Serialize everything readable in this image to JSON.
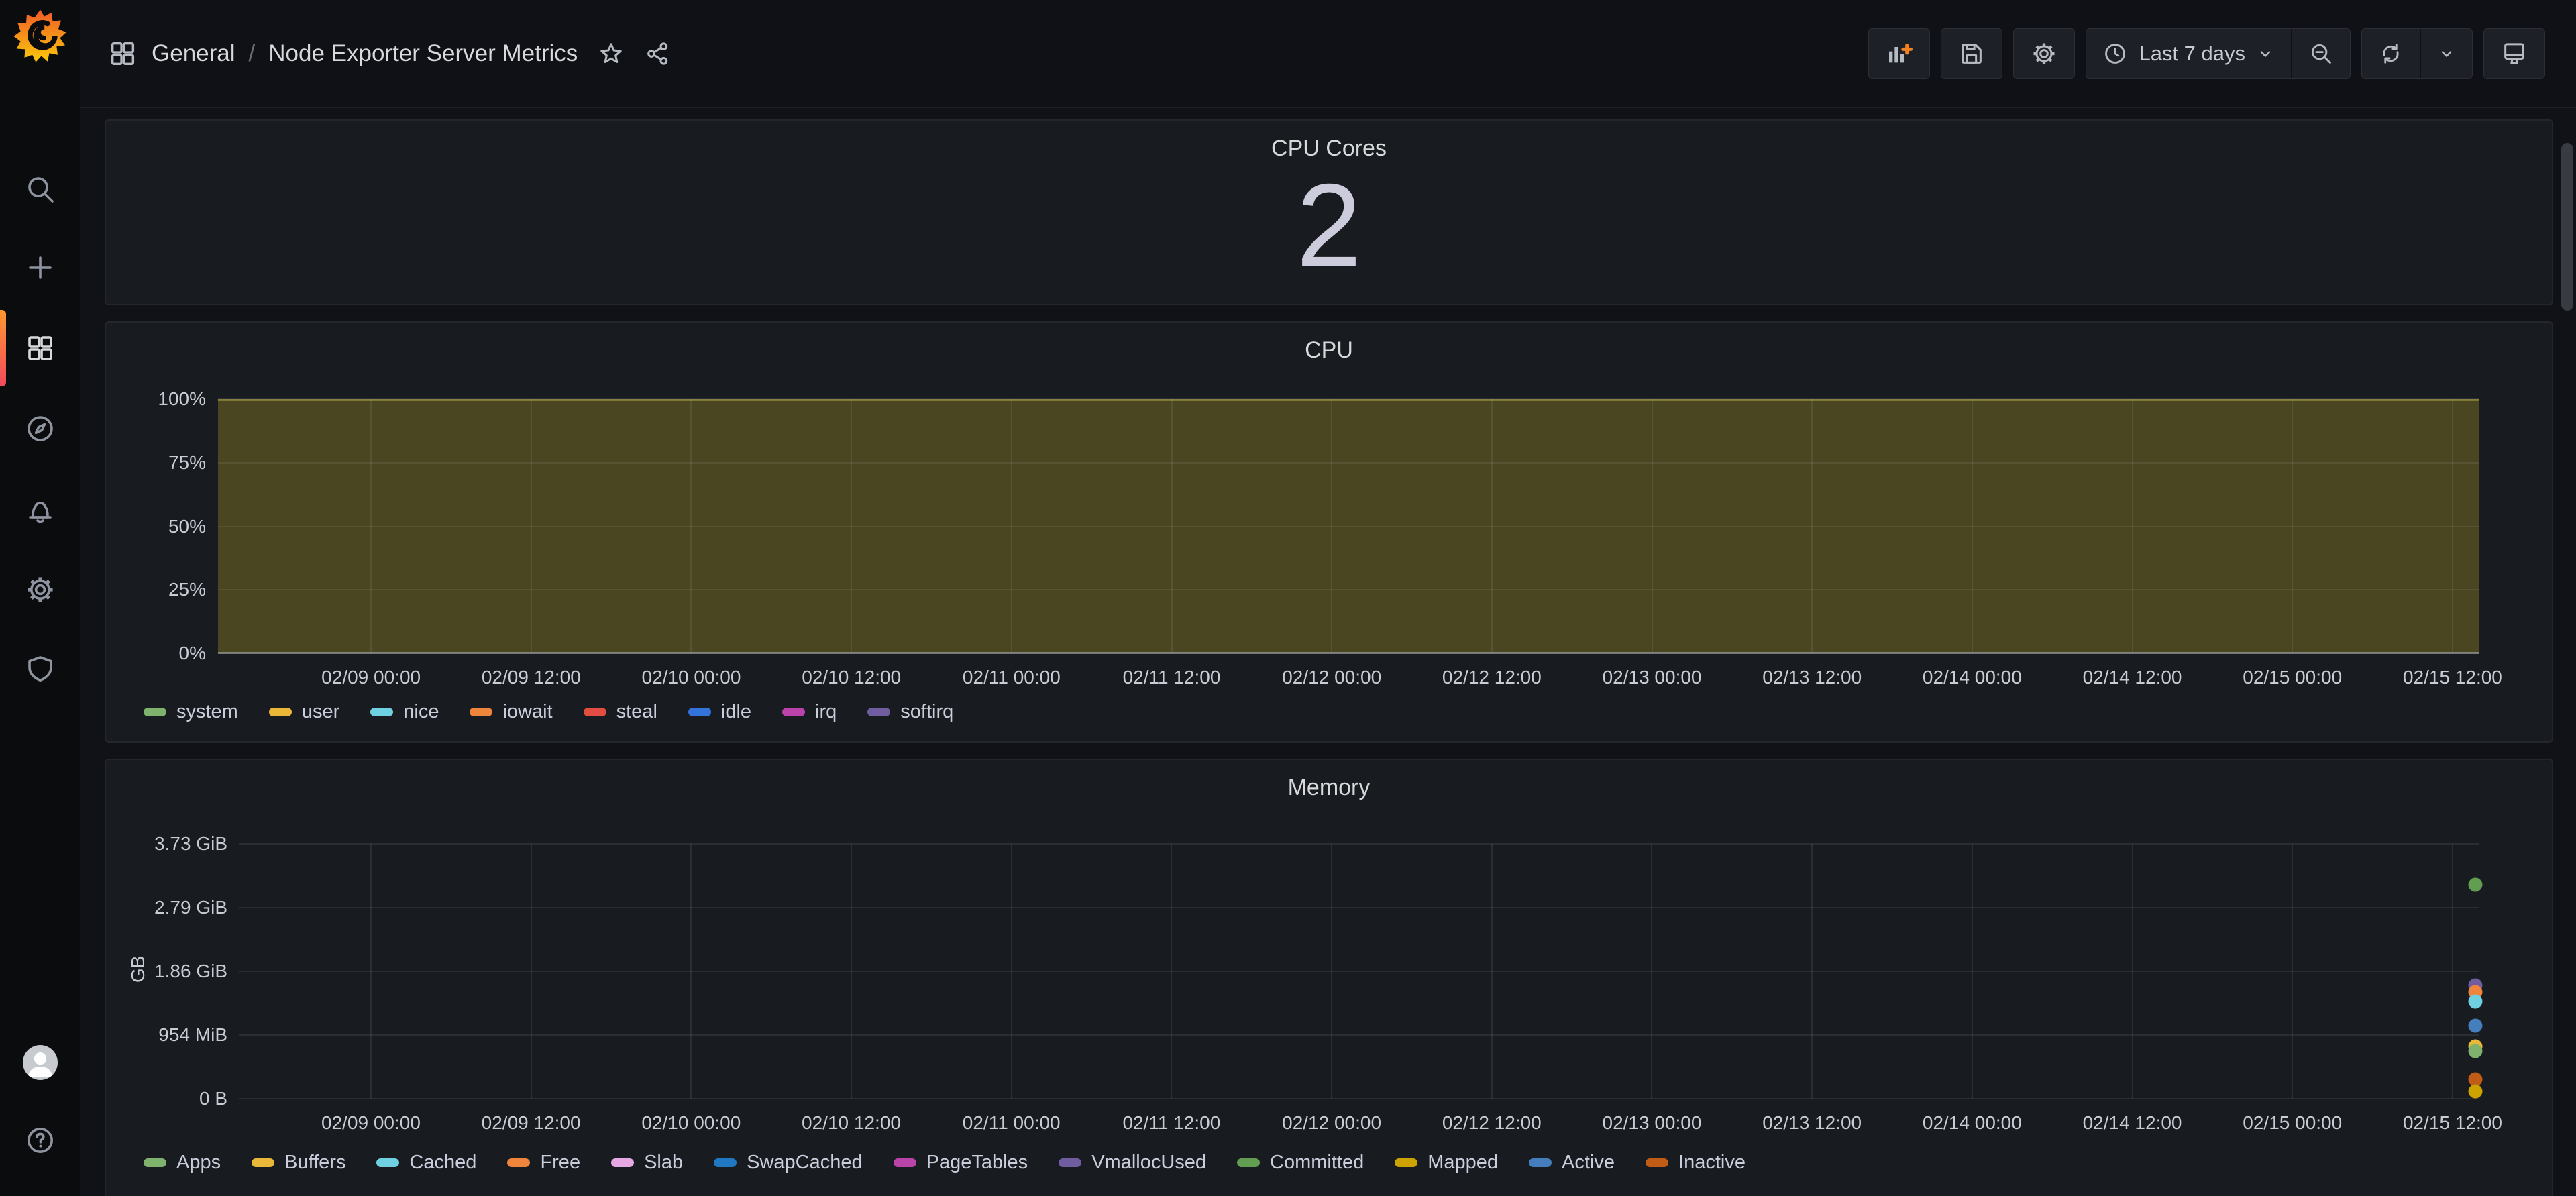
{
  "nav": {
    "folder": "General",
    "separator": "/",
    "title": "Node Exporter Server Metrics"
  },
  "toolbar": {
    "time_range_label": "Last 7 days",
    "buttons": [
      {
        "icon": "add-panel-icon"
      },
      {
        "icon": "save-dashboard-icon"
      },
      {
        "icon": "dashboard-settings-gear-icon"
      },
      {
        "icon": "clock-icon",
        "label": "Last 7 days"
      },
      {
        "icon": "zoom-out-icon"
      },
      {
        "icon": "refresh-icon"
      },
      {
        "icon": "refresh-interval-chevron-icon"
      },
      {
        "icon": "cycle-view-monitor-icon"
      }
    ]
  },
  "sidebar": {
    "items": [
      {
        "icon": "grafana-logo"
      },
      {
        "icon": "search-icon"
      },
      {
        "icon": "plus-icon"
      },
      {
        "icon": "dashboards-grid-icon",
        "active": true
      },
      {
        "icon": "explore-compass-icon"
      },
      {
        "icon": "alerting-bell-icon"
      },
      {
        "icon": "configuration-gear-icon"
      },
      {
        "icon": "admin-shield-icon"
      },
      {
        "icon": "user-avatar"
      },
      {
        "icon": "help-question-icon"
      }
    ]
  },
  "panels": {
    "cpu_cores": {
      "title": "CPU Cores",
      "value": "2"
    }
  },
  "chart_data": [
    {
      "id": "cpu",
      "type": "area",
      "title": "CPU",
      "ylabel": "%",
      "ylim": [
        0,
        100
      ],
      "yticks": [
        "100%",
        "75%",
        "50%",
        "25%",
        "0%"
      ],
      "xticks": [
        "02/09 00:00",
        "02/09 12:00",
        "02/10 00:00",
        "02/10 12:00",
        "02/11 00:00",
        "02/11 12:00",
        "02/12 00:00",
        "02/12 12:00",
        "02/13 00:00",
        "02/13 12:00",
        "02/14 00:00",
        "02/14 12:00",
        "02/15 00:00",
        "02/15 12:00"
      ],
      "series": [
        {
          "name": "stacked cpu usage total",
          "approx_percent": 100
        }
      ],
      "fill_area": {
        "fill_color": "#4a4621",
        "line_color": "#7e7732"
      },
      "baseline_bright": true,
      "grid": true,
      "legend_position": "bottom",
      "legend": [
        {
          "label": "system",
          "color": "#7eb26d"
        },
        {
          "label": "user",
          "color": "#eab839"
        },
        {
          "label": "nice",
          "color": "#6ed0e0"
        },
        {
          "label": "iowait",
          "color": "#ef843c"
        },
        {
          "label": "steal",
          "color": "#e24d42"
        },
        {
          "label": "idle",
          "color": "#3274d9"
        },
        {
          "label": "irq",
          "color": "#ba43a9"
        },
        {
          "label": "softirq",
          "color": "#705da0"
        }
      ],
      "layout": {
        "x_first_frac": 0.0677,
        "x_last_frac": 0.9884
      }
    },
    {
      "id": "memory",
      "type": "scatter",
      "title": "Memory",
      "ylabel": "GB",
      "ylim": [
        0,
        3.7253
      ],
      "yticks": [
        "3.73 GiB",
        "2.79 GiB",
        "1.86 GiB",
        "954 MiB",
        "0 B"
      ],
      "xticks": [
        "02/09 00:00",
        "02/09 12:00",
        "02/10 00:00",
        "02/10 12:00",
        "02/11 00:00",
        "02/11 12:00",
        "02/12 00:00",
        "02/12 12:00",
        "02/13 00:00",
        "02/13 12:00",
        "02/14 00:00",
        "02/14 12:00",
        "02/15 00:00",
        "02/15 12:00"
      ],
      "points": [
        {
          "series": "Committed",
          "gib": 3.13,
          "color": "#629e51"
        },
        {
          "series": "VmallocUsed",
          "gib": 1.66,
          "color": "#705da0"
        },
        {
          "series": "Free",
          "gib": 1.56,
          "color": "#ef843c"
        },
        {
          "series": "Cached",
          "gib": 1.42,
          "color": "#6ed0e0"
        },
        {
          "series": "Active",
          "gib": 1.07,
          "color": "#447ebc"
        },
        {
          "series": "Buffers",
          "gib": 0.76,
          "color": "#eab839"
        },
        {
          "series": "Apps",
          "gib": 0.7,
          "color": "#7eb26d"
        },
        {
          "series": "Inactive",
          "gib": 0.28,
          "color": "#c15c17"
        },
        {
          "series": "Mapped",
          "gib": 0.11,
          "color": "#cca300"
        }
      ],
      "grid": true,
      "legend_position": "bottom",
      "legend": [
        {
          "label": "Apps",
          "color": "#7eb26d"
        },
        {
          "label": "Buffers",
          "color": "#eab839"
        },
        {
          "label": "Cached",
          "color": "#6ed0e0"
        },
        {
          "label": "Free",
          "color": "#ef843c"
        },
        {
          "label": "Slab",
          "color": "#e5a8e2"
        },
        {
          "label": "SwapCached",
          "color": "#1f78c1"
        },
        {
          "label": "PageTables",
          "color": "#ba43a9"
        },
        {
          "label": "VmallocUsed",
          "color": "#705da0"
        },
        {
          "label": "Committed",
          "color": "#629e51"
        },
        {
          "label": "Mapped",
          "color": "#cca300"
        },
        {
          "label": "Active",
          "color": "#447ebc"
        },
        {
          "label": "Inactive",
          "color": "#c15c17"
        }
      ],
      "layout": {
        "x_first_frac": 0.0587,
        "x_last_frac": 0.9883,
        "points_x_frac": 0.9985
      }
    }
  ],
  "colors": {
    "brand_orange": "#f05a28",
    "brand_yellow": "#fbca0a",
    "page_bg": "#111217",
    "panel_bg": "#181b1f",
    "cpu_fill": "#4a4621"
  }
}
